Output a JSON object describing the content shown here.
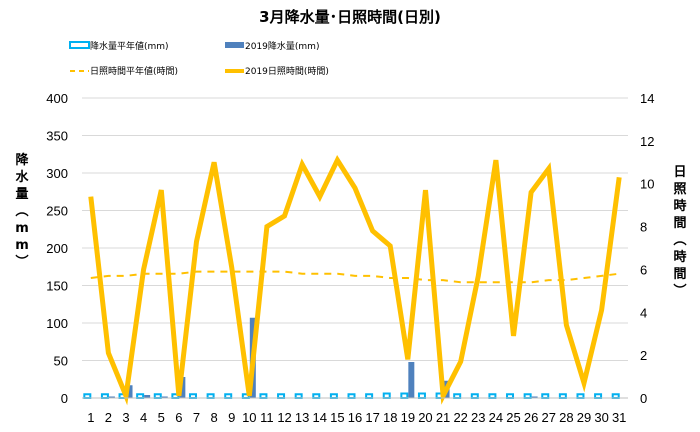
{
  "chart_data": {
    "type": "bar",
    "title": "3月降水量･日照時間(日別)",
    "categories": [
      "1",
      "2",
      "3",
      "4",
      "5",
      "6",
      "7",
      "8",
      "9",
      "10",
      "11",
      "12",
      "13",
      "14",
      "15",
      "16",
      "17",
      "18",
      "19",
      "20",
      "21",
      "22",
      "23",
      "24",
      "25",
      "26",
      "27",
      "28",
      "29",
      "30",
      "31"
    ],
    "ylabel": "降水量(mm)",
    "y2label": "日照時間(時間)",
    "ylim": [
      0,
      400
    ],
    "yticks": [
      "0",
      "50",
      "100",
      "150",
      "200",
      "250",
      "300",
      "350",
      "400"
    ],
    "y2lim": [
      0,
      14
    ],
    "y2ticks": [
      "0",
      "2",
      "4",
      "6",
      "8",
      "10",
      "12",
      "14"
    ],
    "legend_placement": "top",
    "grid": true,
    "series": [
      {
        "name": "降水量平年値(mm)",
        "kind": "bar-outline",
        "axis": "left",
        "color": "#00b0f0",
        "values": [
          5,
          5,
          5,
          5,
          5,
          5,
          5,
          5,
          5,
          5,
          5,
          5,
          5,
          5,
          5,
          5,
          5,
          6,
          6,
          6,
          6,
          5,
          5,
          5,
          5,
          5,
          5,
          5,
          5,
          5,
          5
        ]
      },
      {
        "name": "2019降水量(mm)",
        "kind": "bar",
        "axis": "left",
        "color": "#4f81bd",
        "values": [
          0,
          2,
          17,
          4,
          2,
          28,
          0,
          0,
          0,
          107,
          0,
          0,
          0,
          0,
          0,
          0,
          0,
          0,
          48,
          0,
          23,
          0,
          0,
          0,
          0,
          2,
          0,
          0,
          0,
          0,
          0
        ]
      },
      {
        "name": "日照時間平年値(時間)",
        "kind": "line-dashed",
        "axis": "right",
        "color": "#ffc000",
        "values": [
          5.6,
          5.7,
          5.7,
          5.8,
          5.8,
          5.8,
          5.9,
          5.9,
          5.9,
          5.9,
          5.9,
          5.9,
          5.8,
          5.8,
          5.8,
          5.7,
          5.7,
          5.6,
          5.6,
          5.5,
          5.5,
          5.4,
          5.4,
          5.4,
          5.4,
          5.4,
          5.5,
          5.5,
          5.6,
          5.7,
          5.8
        ]
      },
      {
        "name": "2019日照時間(時間)",
        "kind": "line",
        "axis": "right",
        "color": "#ffc000",
        "values": [
          9.4,
          2.1,
          0.1,
          6.0,
          9.7,
          0.1,
          7.3,
          11.0,
          6.1,
          0.1,
          8.0,
          8.5,
          10.9,
          9.4,
          11.1,
          9.8,
          7.8,
          7.1,
          1.8,
          9.7,
          0.1,
          1.7,
          5.7,
          11.1,
          2.9,
          9.6,
          10.7,
          3.4,
          0.7,
          4.1,
          10.3
        ]
      }
    ]
  }
}
